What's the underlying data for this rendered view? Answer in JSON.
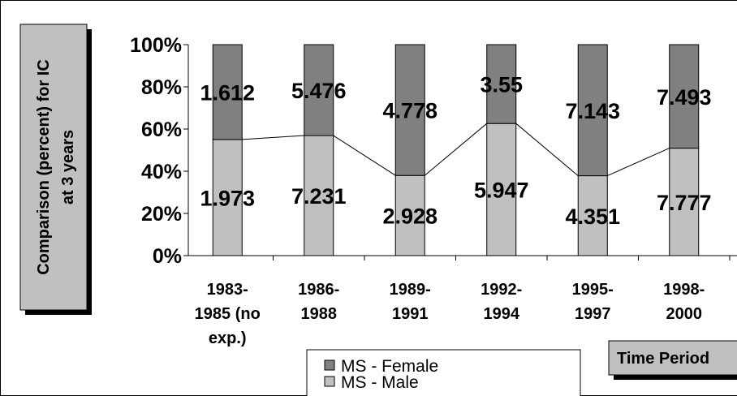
{
  "chart_data": {
    "type": "bar",
    "stacked": "percent",
    "ylabel": [
      "Comparison (percent) for IC",
      "at 3 years"
    ],
    "xlabel": "Time Period",
    "categories": [
      [
        "1983-",
        "1985 (no",
        "exp.)"
      ],
      [
        "1986-",
        "1988"
      ],
      [
        "1989-",
        "1991"
      ],
      [
        "1992-",
        "1994"
      ],
      [
        "1995-",
        "1997"
      ],
      [
        "1998-",
        "2000"
      ]
    ],
    "series": [
      {
        "name": "MS - Male",
        "color": "#c0c0c0",
        "values": [
          1.973,
          7.231,
          2.928,
          5.947,
          4.351,
          7.777
        ]
      },
      {
        "name": "MS - Female",
        "color": "#808080",
        "values": [
          1.612,
          5.476,
          4.778,
          3.55,
          7.143,
          7.493
        ]
      }
    ],
    "ylim": [
      0,
      100
    ],
    "yticks": [
      {
        "value": 0,
        "label": "0%"
      },
      {
        "value": 20,
        "label": "20%"
      },
      {
        "value": 40,
        "label": "40%"
      },
      {
        "value": 60,
        "label": "60%"
      },
      {
        "value": 80,
        "label": "80%"
      },
      {
        "value": 100,
        "label": "100%"
      }
    ],
    "series_lines": true,
    "legend": "bottom"
  }
}
